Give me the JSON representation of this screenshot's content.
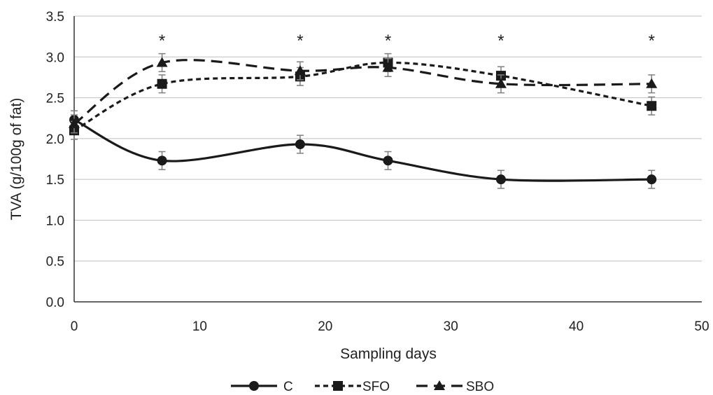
{
  "chart_data": {
    "type": "line",
    "title": "",
    "xlabel": "Sampling days",
    "ylabel": "TVA (g/100g of fat)",
    "xlim": [
      0,
      50
    ],
    "ylim": [
      0,
      3.5
    ],
    "x_ticks": [
      0,
      10,
      20,
      30,
      40,
      50
    ],
    "x_tick_labels": [
      "0",
      "10",
      "20",
      "30",
      "40",
      "50"
    ],
    "y_ticks": [
      0,
      0.5,
      1.0,
      1.5,
      2.0,
      2.5,
      3.0,
      3.5
    ],
    "y_tick_labels": [
      "0.0",
      "0.5",
      "1.0",
      "1.5",
      "2.0",
      "2.5",
      "3.0",
      "3.5"
    ],
    "grid": true,
    "smooth": true,
    "legend_position": "bottom",
    "series": [
      {
        "name": "C",
        "marker": "circle",
        "line_style": "solid",
        "x": [
          0,
          7,
          18,
          25,
          34,
          46
        ],
        "y": [
          2.23,
          1.73,
          1.93,
          1.73,
          1.5,
          1.5
        ],
        "error": [
          0.11,
          0.11,
          0.11,
          0.11,
          0.11,
          0.11
        ]
      },
      {
        "name": "SFO",
        "marker": "square",
        "line_style": "dotted",
        "x": [
          0,
          7,
          18,
          25,
          34,
          46
        ],
        "y": [
          2.1,
          2.67,
          2.76,
          2.93,
          2.77,
          2.4
        ],
        "error": [
          0.11,
          0.11,
          0.11,
          0.11,
          0.11,
          0.11
        ]
      },
      {
        "name": "SBO",
        "marker": "triangle",
        "line_style": "dashed",
        "x": [
          0,
          7,
          18,
          25,
          34,
          46
        ],
        "y": [
          2.18,
          2.93,
          2.83,
          2.87,
          2.67,
          2.67
        ],
        "error": [
          0.11,
          0.11,
          0.11,
          0.11,
          0.11,
          0.11
        ]
      }
    ],
    "annotations": [
      {
        "x": 7,
        "text": "*"
      },
      {
        "x": 18,
        "text": "*"
      },
      {
        "x": 25,
        "text": "*"
      },
      {
        "x": 34,
        "text": "*"
      },
      {
        "x": 46,
        "text": "*"
      }
    ],
    "colors": {
      "line": "#1a1a1a",
      "grid": "#bfbfbf",
      "axis": "#333333",
      "error_bar": "#7f7f7f"
    }
  }
}
